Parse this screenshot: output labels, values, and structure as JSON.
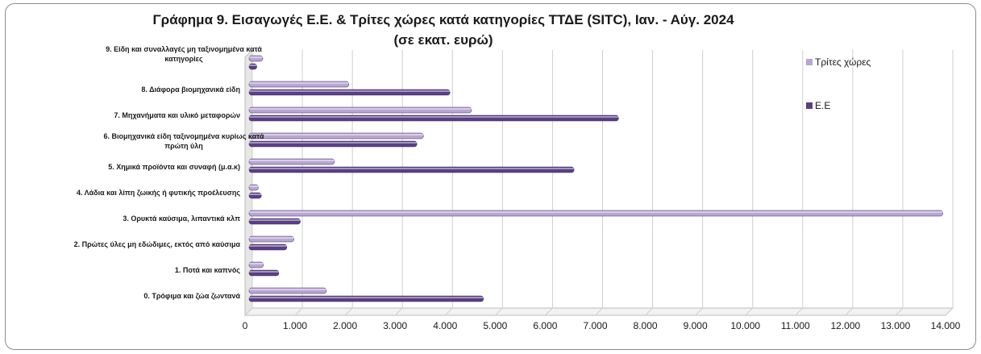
{
  "colors": {
    "third_countries": "#b8a6d4",
    "eu": "#5a3f86",
    "grid": "#cfcfcf",
    "axis_text": "#1a1a1a"
  },
  "chart_data": {
    "type": "bar",
    "orientation": "horizontal",
    "title": "Γράφημα  9. Εισαγωγές Ε.Ε. & Τρίτες χώρες κατά κατηγορίες ΤΤΔΕ (SITC), Ιαν. -  Αύγ. 2024",
    "subtitle": "(σε εκατ. ευρώ)",
    "categories": [
      "9. Είδη και συναλλαγές μη ταξινομημένα κατά  κατηγορίες",
      "8. Διάφορα βιομηχανικά είδη",
      "7. Μηχανήματα και υλικό μεταφορών",
      "6. Βιομηχανικά είδη ταξινομημένα κυρίως κατά πρώτη ύλη",
      "5. Χημικά προϊόντα και συναφή (μ.α.κ)",
      "4. Λάδια και λίπη ζωικής ή φυτικής προέλευσης",
      "3. Ορυκτά καύσιμα, λιπαντικά κλπ",
      "2. Πρώτες ύλες μη εδώδιμες, εκτός από καύσιμα",
      "1. Ποτά και καπνός",
      "0. Τρόφιμα και ζώα ζωντανά"
    ],
    "series": [
      {
        "name": "Τρίτες χώρες",
        "color": "#b8a6d4",
        "values": [
          210,
          1930,
          4380,
          3420,
          1640,
          120,
          13800,
          830,
          220,
          1480
        ]
      },
      {
        "name": "Ε.Ε",
        "color": "#5a3f86",
        "values": [
          90,
          3950,
          7320,
          3290,
          6430,
          180,
          960,
          690,
          530,
          4620
        ]
      }
    ],
    "xlim": [
      0,
      14000
    ],
    "xticks": [
      "0",
      "1.000",
      "2.000",
      "3.000",
      "4.000",
      "5.000",
      "6.000",
      "7.000",
      "8.000",
      "9.000",
      "10.000",
      "11.000",
      "12.000",
      "13.000",
      "14.000"
    ],
    "grid": true,
    "legend_position": "top-right"
  }
}
